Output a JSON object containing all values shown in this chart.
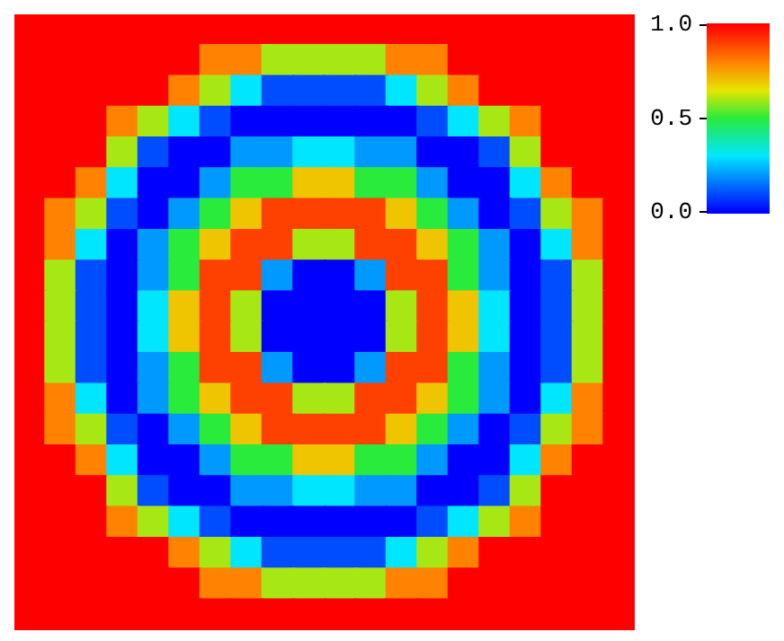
{
  "chart_data": {
    "type": "heatmap",
    "categories": [
      null,
      null,
      null,
      null,
      null,
      null,
      null,
      null,
      null,
      null,
      null,
      null,
      null,
      null,
      null,
      null,
      null,
      null,
      null,
      null
    ],
    "y_categories": [
      null,
      null,
      null,
      null,
      null,
      null,
      null,
      null,
      null,
      null,
      null,
      null,
      null,
      null,
      null,
      null,
      null,
      null,
      null,
      null
    ],
    "cells": [
      [
        1,
        1,
        1,
        1,
        1,
        1,
        1,
        1,
        1,
        1,
        1,
        1,
        1,
        1,
        1,
        1,
        1,
        1,
        1,
        1
      ],
      [
        1,
        1,
        1,
        1,
        1,
        1,
        0.8,
        0.8,
        0.6,
        0.6,
        0.6,
        0.6,
        0.8,
        0.8,
        1,
        1,
        1,
        1,
        1,
        1
      ],
      [
        1,
        1,
        1,
        1,
        1,
        0.8,
        0.6,
        0.3,
        0.1,
        0.1,
        0.1,
        0.1,
        0.3,
        0.6,
        0.8,
        1,
        1,
        1,
        1,
        1
      ],
      [
        1,
        1,
        1,
        0.8,
        0.6,
        0.3,
        0.1,
        0,
        0,
        0,
        0,
        0,
        0,
        0.1,
        0.3,
        0.6,
        0.8,
        1,
        1,
        1
      ],
      [
        1,
        1,
        1,
        0.6,
        0.1,
        0,
        0,
        0.2,
        0.2,
        0.3,
        0.3,
        0.2,
        0.2,
        0,
        0,
        0.1,
        0.6,
        1,
        1,
        1
      ],
      [
        1,
        1,
        0.8,
        0.3,
        0,
        0,
        0.2,
        0.5,
        0.5,
        0.7,
        0.7,
        0.5,
        0.5,
        0.2,
        0,
        0,
        0.3,
        0.8,
        1,
        1
      ],
      [
        1,
        0.8,
        0.6,
        0.1,
        0,
        0.2,
        0.5,
        0.7,
        0.9,
        0.9,
        0.9,
        0.9,
        0.7,
        0.5,
        0.2,
        0,
        0.1,
        0.6,
        0.8,
        1
      ],
      [
        1,
        0.8,
        0.3,
        0,
        0.2,
        0.5,
        0.7,
        0.9,
        0.9,
        0.6,
        0.6,
        0.9,
        0.9,
        0.7,
        0.5,
        0.2,
        0,
        0.3,
        0.8,
        1
      ],
      [
        1,
        0.6,
        0.1,
        0,
        0.2,
        0.5,
        0.9,
        0.9,
        0.2,
        0,
        0,
        0.2,
        0.9,
        0.9,
        0.5,
        0.2,
        0,
        0.1,
        0.6,
        1
      ],
      [
        1,
        0.6,
        0.1,
        0,
        0.3,
        0.7,
        0.9,
        0.6,
        0,
        0,
        0,
        0,
        0.6,
        0.9,
        0.7,
        0.3,
        0,
        0.1,
        0.6,
        1
      ],
      [
        1,
        0.6,
        0.1,
        0,
        0.3,
        0.7,
        0.9,
        0.6,
        0,
        0,
        0,
        0,
        0.6,
        0.9,
        0.7,
        0.3,
        0,
        0.1,
        0.6,
        1
      ],
      [
        1,
        0.6,
        0.1,
        0,
        0.2,
        0.5,
        0.9,
        0.9,
        0.2,
        0,
        0,
        0.2,
        0.9,
        0.9,
        0.5,
        0.2,
        0,
        0.1,
        0.6,
        1
      ],
      [
        1,
        0.8,
        0.3,
        0,
        0.2,
        0.5,
        0.7,
        0.9,
        0.9,
        0.6,
        0.6,
        0.9,
        0.9,
        0.7,
        0.5,
        0.2,
        0,
        0.3,
        0.8,
        1
      ],
      [
        1,
        0.8,
        0.6,
        0.1,
        0,
        0.2,
        0.5,
        0.7,
        0.9,
        0.9,
        0.9,
        0.9,
        0.7,
        0.5,
        0.2,
        0,
        0.1,
        0.6,
        0.8,
        1
      ],
      [
        1,
        1,
        0.8,
        0.3,
        0,
        0,
        0.2,
        0.5,
        0.5,
        0.7,
        0.7,
        0.5,
        0.5,
        0.2,
        0,
        0,
        0.3,
        0.8,
        1,
        1
      ],
      [
        1,
        1,
        1,
        0.6,
        0.1,
        0,
        0,
        0.2,
        0.2,
        0.3,
        0.3,
        0.2,
        0.2,
        0,
        0,
        0.1,
        0.6,
        1,
        1,
        1
      ],
      [
        1,
        1,
        1,
        0.8,
        0.6,
        0.3,
        0.1,
        0,
        0,
        0,
        0,
        0,
        0,
        0.1,
        0.3,
        0.6,
        0.8,
        1,
        1,
        1
      ],
      [
        1,
        1,
        1,
        1,
        1,
        0.8,
        0.6,
        0.3,
        0.1,
        0.1,
        0.1,
        0.1,
        0.3,
        0.6,
        0.8,
        1,
        1,
        1,
        1,
        1
      ],
      [
        1,
        1,
        1,
        1,
        1,
        1,
        0.8,
        0.8,
        0.6,
        0.6,
        0.6,
        0.6,
        0.8,
        0.8,
        1,
        1,
        1,
        1,
        1,
        1
      ],
      [
        1,
        1,
        1,
        1,
        1,
        1,
        1,
        1,
        1,
        1,
        1,
        1,
        1,
        1,
        1,
        1,
        1,
        1,
        1,
        1
      ]
    ],
    "clim": [
      0,
      1
    ],
    "cticks": [
      {
        "value": 0,
        "label": "0.0"
      },
      {
        "value": 0.5,
        "label": "0.5"
      },
      {
        "value": 1,
        "label": "1.0"
      }
    ],
    "tick_labels": false
  }
}
